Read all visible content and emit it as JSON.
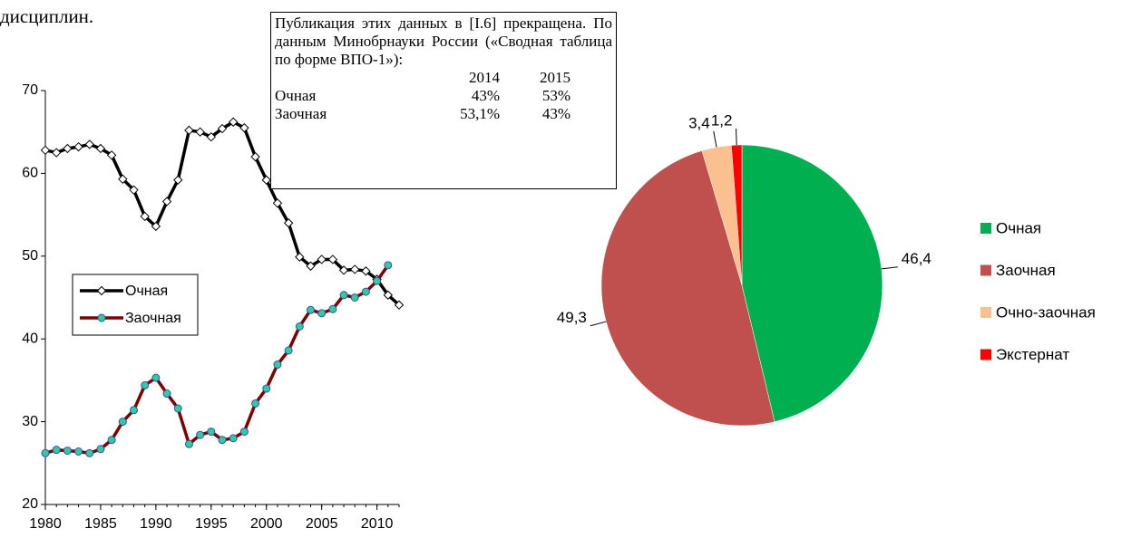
{
  "text_fragment": "дисциплин.",
  "note": {
    "text": "Публикация этих данных в [I.6] прекращена. По данным Минобрнауки России («Сводная таблица по форме ВПО-1»):",
    "header": [
      "2014",
      "2015"
    ],
    "rows": [
      [
        "Очная",
        "43%",
        "53%"
      ],
      [
        "Заочная",
        "53,1%",
        "43%"
      ]
    ]
  },
  "chart_data": [
    {
      "type": "line",
      "x": [
        1980,
        1981,
        1982,
        1983,
        1984,
        1985,
        1986,
        1987,
        1988,
        1989,
        1990,
        1991,
        1992,
        1993,
        1994,
        1995,
        1996,
        1997,
        1998,
        1999,
        2000,
        2001,
        2002,
        2003,
        2004,
        2005,
        2006,
        2007,
        2008,
        2009,
        2010,
        2011,
        2012
      ],
      "series": [
        {
          "name": "Очная",
          "color": "#000000",
          "marker_fill": "#ffffff",
          "values": [
            62.8,
            62.5,
            63.0,
            63.2,
            63.5,
            63.0,
            62.2,
            59.3,
            58.0,
            54.8,
            53.6,
            56.6,
            59.2,
            65.2,
            65.0,
            64.4,
            65.4,
            66.2,
            65.5,
            62.0,
            59.2,
            56.4,
            54.0,
            49.9,
            48.8,
            49.6,
            49.6,
            48.3,
            48.4,
            48.2,
            47.2,
            45.3,
            44.1
          ]
        },
        {
          "name": "Заочная",
          "color": "#800000",
          "marker_fill": "#33cc99",
          "values": [
            26.2,
            26.6,
            26.5,
            26.4,
            26.2,
            26.7,
            27.8,
            30.0,
            31.4,
            34.4,
            35.3,
            33.4,
            31.6,
            27.3,
            28.4,
            28.8,
            27.8,
            28.0,
            28.8,
            32.2,
            34.0,
            36.9,
            38.6,
            41.5,
            43.5,
            43.1,
            43.6,
            45.3,
            45.0,
            45.7,
            47.0,
            48.9,
            null
          ]
        }
      ],
      "xlim": [
        1980,
        2012
      ],
      "xticks": [
        1980,
        1985,
        1990,
        1995,
        2000,
        2005,
        2010
      ],
      "ylim": [
        20,
        70
      ],
      "yticks": [
        20,
        30,
        40,
        50,
        60,
        70
      ],
      "grid": false,
      "legend": "left"
    },
    {
      "type": "pie",
      "categories": [
        "Очная",
        "Заочная",
        "Очно-заочная",
        "Экстернат"
      ],
      "values": [
        46.4,
        49.3,
        3.4,
        1.2
      ],
      "value_labels": [
        "46,4",
        "49,3",
        "3,4",
        "1,2"
      ],
      "colors": [
        "#00b050",
        "#c0504d",
        "#fac090",
        "#ff0000"
      ],
      "legend": "right"
    }
  ]
}
